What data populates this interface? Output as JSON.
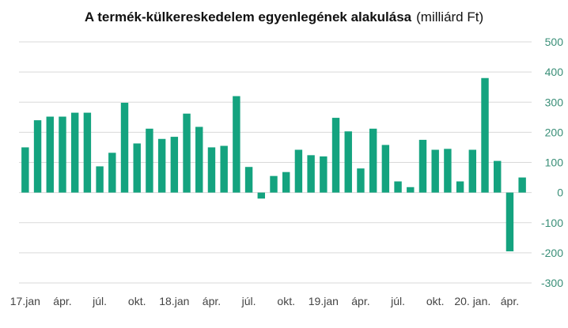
{
  "chart_data": {
    "type": "bar",
    "title": "A termék-külkereskedelem egyenlegének alakulása",
    "subtitle": "(milliárd Ft)",
    "xlabel": "",
    "ylabel": "",
    "ylim": [
      -300,
      500
    ],
    "yticks": [
      500,
      400,
      300,
      200,
      100,
      0,
      -100,
      -200,
      -300
    ],
    "grid": true,
    "bar_color": "#14a37f",
    "tick_color": "#3a8f78",
    "x_tick_labels": [
      {
        "index": 0,
        "label": "17.jan"
      },
      {
        "index": 3,
        "label": "ápr."
      },
      {
        "index": 6,
        "label": "júl."
      },
      {
        "index": 9,
        "label": "okt."
      },
      {
        "index": 12,
        "label": "18.jan"
      },
      {
        "index": 15,
        "label": "ápr."
      },
      {
        "index": 18,
        "label": "júl."
      },
      {
        "index": 21,
        "label": "okt."
      },
      {
        "index": 24,
        "label": "19.jan"
      },
      {
        "index": 27,
        "label": "ápr."
      },
      {
        "index": 30,
        "label": "júl."
      },
      {
        "index": 33,
        "label": "okt."
      },
      {
        "index": 36,
        "label": "20. jan."
      },
      {
        "index": 39,
        "label": "ápr."
      }
    ],
    "values": [
      150,
      240,
      252,
      252,
      265,
      265,
      87,
      132,
      298,
      163,
      212,
      178,
      185,
      262,
      218,
      150,
      155,
      320,
      85,
      -20,
      55,
      68,
      142,
      124,
      120,
      248,
      203,
      80,
      212,
      158,
      37,
      18,
      175,
      142,
      145,
      37,
      142,
      380,
      105,
      -195,
      50
    ]
  }
}
